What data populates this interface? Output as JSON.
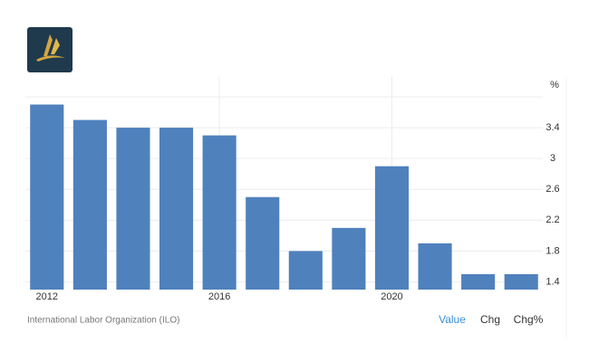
{
  "chart_data": {
    "type": "bar",
    "unit": "%",
    "categories": [
      "2012",
      null,
      null,
      null,
      "2016",
      null,
      null,
      null,
      "2020",
      null,
      null,
      null
    ],
    "values": [
      3.7,
      3.5,
      3.4,
      3.4,
      3.3,
      2.5,
      1.8,
      2.1,
      2.9,
      1.9,
      1.5,
      1.5
    ],
    "color": "#4f81bd",
    "ylim": [
      1.3,
      3.8
    ],
    "yticks": [
      1.4,
      1.8,
      2.2,
      2.6,
      3.0,
      3.4
    ],
    "grid": true,
    "source": "International Labor Organization (ILO)"
  },
  "tabs": [
    "Value",
    "Chg",
    "Chg%"
  ]
}
